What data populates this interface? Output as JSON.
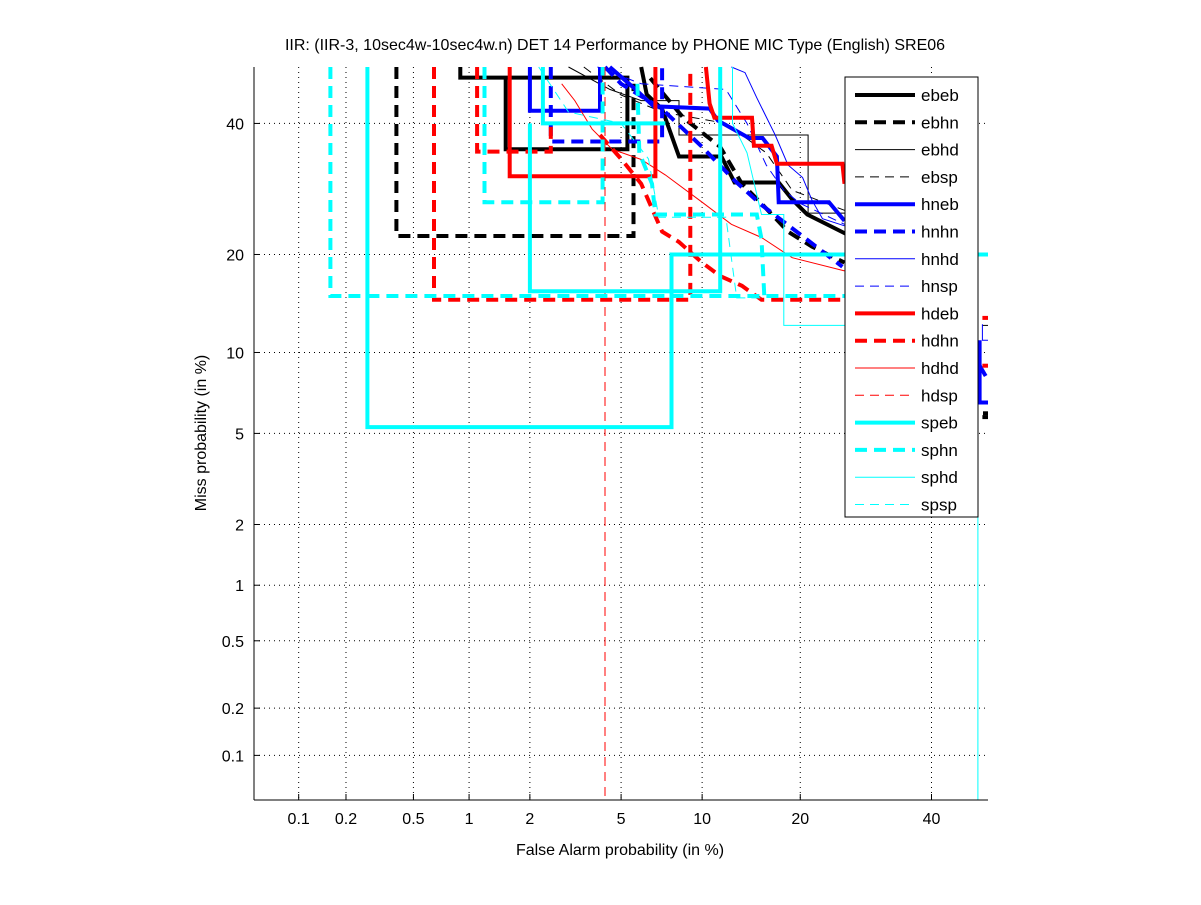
{
  "chart_data": {
    "type": "line",
    "scale": "normal-deviate (DET)",
    "title": "IIR: (IIR-3, 10sec4w-10sec4w.n) DET 14 Performance by PHONE MIC Type (English) SRE06",
    "xlabel": "False Alarm probability (in %)",
    "ylabel": "Miss probability (in %)",
    "xlim": [
      0.05,
      50
    ],
    "ylim": [
      0.05,
      50
    ],
    "xticks": [
      0.1,
      0.2,
      0.5,
      1,
      2,
      5,
      10,
      20,
      40
    ],
    "xtick_labels": [
      "0.1",
      "0.2",
      "0.5",
      "1",
      "2",
      "5",
      "10",
      "20",
      "40"
    ],
    "yticks": [
      0.1,
      0.2,
      0.5,
      1,
      2,
      5,
      10,
      20,
      40
    ],
    "ytick_labels": [
      "0.1",
      "0.2",
      "0.5",
      "1",
      "2",
      "5",
      "10",
      "20",
      "40"
    ],
    "grid": true,
    "legend_position": "top-right",
    "series": [
      {
        "name": "ebeb",
        "color": "#000000",
        "style": "thick-solid",
        "segments": [
          [
            [
              0.9,
              50
            ],
            [
              0.9,
              48.1
            ],
            [
              5.3,
              48.1
            ],
            [
              5.3,
              35.6
            ],
            [
              1.53,
              35.6
            ],
            [
              1.53,
              48.1
            ]
          ],
          [
            [
              6.0,
              50
            ],
            [
              6.3,
              45.1
            ],
            [
              7.2,
              42.5
            ],
            [
              8.3,
              34.4
            ],
            [
              11.6,
              34.4
            ],
            [
              12.8,
              30.2
            ],
            [
              17.4,
              30.2
            ],
            [
              19.0,
              27.6
            ],
            [
              20.9,
              25.4
            ],
            [
              26.4,
              22.6
            ]
          ],
          [
            [
              49.1,
              6.0
            ],
            [
              50,
              6.0
            ]
          ]
        ]
      },
      {
        "name": "ebhn",
        "color": "#000000",
        "style": "thick-dashed",
        "segments": [
          [
            [
              0.4,
              50
            ],
            [
              0.4,
              22.4
            ],
            [
              5.6,
              22.4
            ],
            [
              5.6,
              47
            ]
          ],
          [
            [
              6.5,
              48
            ],
            [
              8.6,
              41
            ],
            [
              11.5,
              36
            ],
            [
              13.5,
              30
            ],
            [
              15.5,
              27
            ],
            [
              18.5,
              23
            ],
            [
              21.5,
              21
            ],
            [
              26,
              19
            ]
          ],
          [
            [
              49,
              5.8
            ],
            [
              50,
              5.8
            ]
          ]
        ]
      },
      {
        "name": "ebhd",
        "color": "#000000",
        "style": "thin-solid",
        "segments": [
          [
            [
              3,
              50
            ],
            [
              4.5,
              46
            ],
            [
              6,
              44
            ],
            [
              8.3,
              44
            ],
            [
              8.3,
              38
            ],
            [
              21,
              38
            ],
            [
              21,
              25.6
            ],
            [
              26,
              25.6
            ]
          ],
          [
            [
              49,
              12.3
            ],
            [
              50,
              12.3
            ]
          ]
        ]
      },
      {
        "name": "ebsp",
        "color": "#000000",
        "style": "thin-dashed",
        "segments": [
          [
            [
              3.5,
              50
            ],
            [
              5,
              45
            ],
            [
              7.2,
              42
            ],
            [
              12,
              40
            ],
            [
              16,
              35
            ],
            [
              19,
              29
            ],
            [
              26,
              26
            ]
          ]
        ]
      },
      {
        "name": "hneb",
        "color": "#0000ff",
        "style": "thick-solid",
        "segments": [
          [
            [
              2.0,
              50
            ],
            [
              2.0,
              42.2
            ],
            [
              4.1,
              42.2
            ],
            [
              4.1,
              50
            ]
          ],
          [
            [
              4.5,
              50
            ],
            [
              5.7,
              46
            ],
            [
              6.7,
              43
            ],
            [
              10.6,
              42.6
            ],
            [
              11.3,
              40.5
            ],
            [
              14.2,
              37.5
            ],
            [
              15.6,
              37.5
            ],
            [
              17.2,
              34.4
            ],
            [
              17.4,
              27.2
            ],
            [
              23.8,
              27.2
            ],
            [
              26,
              24.5
            ]
          ],
          [
            [
              48.5,
              11
            ],
            [
              48.5,
              6.6
            ],
            [
              50,
              6.6
            ]
          ]
        ]
      },
      {
        "name": "hnhn",
        "color": "#0000ff",
        "style": "thick-dashed",
        "segments": [
          [
            [
              2.5,
              50
            ],
            [
              2.5,
              36.9
            ],
            [
              7.2,
              36.9
            ],
            [
              7.2,
              50
            ]
          ],
          [
            [
              4.3,
              50
            ],
            [
              5.0,
              47
            ],
            [
              7.2,
              42.5
            ],
            [
              10,
              36
            ],
            [
              12.8,
              30.5
            ],
            [
              15.5,
              26.8
            ],
            [
              20.0,
              22.6
            ],
            [
              25.7,
              18.5
            ]
          ],
          [
            [
              48.5,
              9
            ],
            [
              50,
              8
            ]
          ]
        ]
      },
      {
        "name": "hnhd",
        "color": "#0000ff",
        "style": "thin-solid",
        "segments": [
          [
            [
              12.5,
              50
            ],
            [
              13.8,
              49
            ],
            [
              15.0,
              44.5
            ],
            [
              17,
              38
            ],
            [
              18.5,
              33
            ],
            [
              20.3,
              31
            ],
            [
              21.5,
              27.5
            ],
            [
              22.9,
              24.8
            ],
            [
              26,
              23.8
            ]
          ],
          [
            [
              49,
              12.4
            ],
            [
              49,
              11
            ],
            [
              50,
              11
            ]
          ]
        ]
      },
      {
        "name": "hnsp",
        "color": "#0000ff",
        "style": "thin-dashed",
        "segments": [
          [
            [
              4,
              50
            ],
            [
              6,
              47
            ],
            [
              12,
              46
            ],
            [
              14,
              40
            ],
            [
              16,
              33
            ],
            [
              18,
              29
            ],
            [
              20,
              27
            ],
            [
              26,
              24
            ]
          ]
        ]
      },
      {
        "name": "hdeb",
        "color": "#ff0000",
        "style": "thick-solid",
        "segments": [
          [
            [
              1.6,
              50
            ],
            [
              1.6,
              31.2
            ],
            [
              6.8,
              31.2
            ],
            [
              6.8,
              50
            ]
          ],
          [
            [
              10.3,
              50
            ],
            [
              10.6,
              43.5
            ],
            [
              11,
              41
            ],
            [
              14.5,
              41
            ],
            [
              14.7,
              36.2
            ],
            [
              16.6,
              36.2
            ],
            [
              17.2,
              33.2
            ],
            [
              25.7,
              33.2
            ],
            [
              26,
              30
            ]
          ],
          [
            [
              49,
              13
            ],
            [
              50,
              13
            ]
          ]
        ]
      },
      {
        "name": "hdhn",
        "color": "#ff0000",
        "style": "thick-dashed",
        "segments": [
          [
            [
              0.65,
              50
            ],
            [
              0.65,
              14.8
            ],
            [
              9.1,
              14.8
            ],
            [
              9.1,
              50
            ]
          ],
          [
            [
              1.1,
              50
            ],
            [
              1.1,
              35.2
            ],
            [
              2.5,
              35.2
            ],
            [
              2.5,
              40
            ]
          ],
          [
            [
              4.1,
              38
            ],
            [
              5,
              34
            ],
            [
              6,
              30
            ],
            [
              7.2,
              23
            ],
            [
              8.3,
              21.6
            ],
            [
              10,
              19
            ],
            [
              11.5,
              17.4
            ],
            [
              13.5,
              16.3
            ],
            [
              15.5,
              14.8
            ],
            [
              26,
              14.8
            ]
          ],
          [
            [
              49,
              9
            ],
            [
              50,
              9
            ]
          ]
        ]
      },
      {
        "name": "hdhd",
        "color": "#ff0000",
        "style": "thin-solid",
        "segments": [
          [
            [
              2.8,
              47
            ],
            [
              3.2,
              44
            ],
            [
              3.8,
              39
            ],
            [
              4.6,
              35.6
            ],
            [
              6,
              33.9
            ],
            [
              7.4,
              31.4
            ],
            [
              10,
              27.2
            ],
            [
              12.5,
              24
            ],
            [
              15.5,
              22.2
            ],
            [
              19,
              19.6
            ],
            [
              26,
              18
            ]
          ]
        ]
      },
      {
        "name": "hdsp",
        "color": "#ff0000",
        "style": "thin-dashed",
        "segments": [
          [
            [
              4.3,
              50
            ],
            [
              4.3,
              0.05
            ]
          ]
        ]
      },
      {
        "name": "speb",
        "color": "#00ffff",
        "style": "thick-solid",
        "segments": [
          [
            [
              0.27,
              50
            ],
            [
              0.27,
              5.3
            ],
            [
              7.8,
              5.3
            ],
            [
              7.8,
              20
            ],
            [
              50,
              20
            ]
          ],
          [
            [
              2.0,
              40
            ],
            [
              2.0,
              15.7
            ],
            [
              11.5,
              15.7
            ],
            [
              11.5,
              50
            ]
          ],
          [
            [
              2.3,
              50
            ],
            [
              2.3,
              40
            ],
            [
              7.4,
              40
            ]
          ]
        ]
      },
      {
        "name": "sphn",
        "color": "#00ffff",
        "style": "thick-dashed",
        "segments": [
          [
            [
              0.16,
              50
            ],
            [
              0.16,
              15.2
            ],
            [
              26,
              15.2
            ]
          ],
          [
            [
              1.2,
              50
            ],
            [
              1.2,
              27.2
            ],
            [
              4.2,
              27.2
            ],
            [
              4.2,
              50
            ]
          ],
          [
            [
              5.8,
              47
            ],
            [
              5.9,
              35
            ],
            [
              6.6,
              30
            ],
            [
              6.8,
              25.4
            ],
            [
              15,
              25.4
            ],
            [
              15.5,
              22
            ],
            [
              15.8,
              15.2
            ]
          ]
        ]
      },
      {
        "name": "sphd",
        "color": "#00ffff",
        "style": "thin-solid",
        "segments": [
          [
            [
              12.6,
              50
            ],
            [
              12.6,
              40
            ],
            [
              14,
              35
            ],
            [
              15.5,
              25.4
            ],
            [
              18,
              25.4
            ],
            [
              18,
              12.3
            ],
            [
              26,
              12.3
            ]
          ],
          [
            [
              48.2,
              14.5
            ],
            [
              48.2,
              0.05
            ]
          ]
        ]
      },
      {
        "name": "spsp",
        "color": "#00ffff",
        "style": "thin-dashed",
        "segments": [
          [
            [
              2.2,
              50
            ],
            [
              3,
              42
            ],
            [
              5,
              40
            ],
            [
              6.4,
              34
            ],
            [
              7,
              25
            ],
            [
              12,
              25
            ],
            [
              13,
              15
            ],
            [
              15.5,
              15
            ]
          ]
        ]
      }
    ]
  }
}
